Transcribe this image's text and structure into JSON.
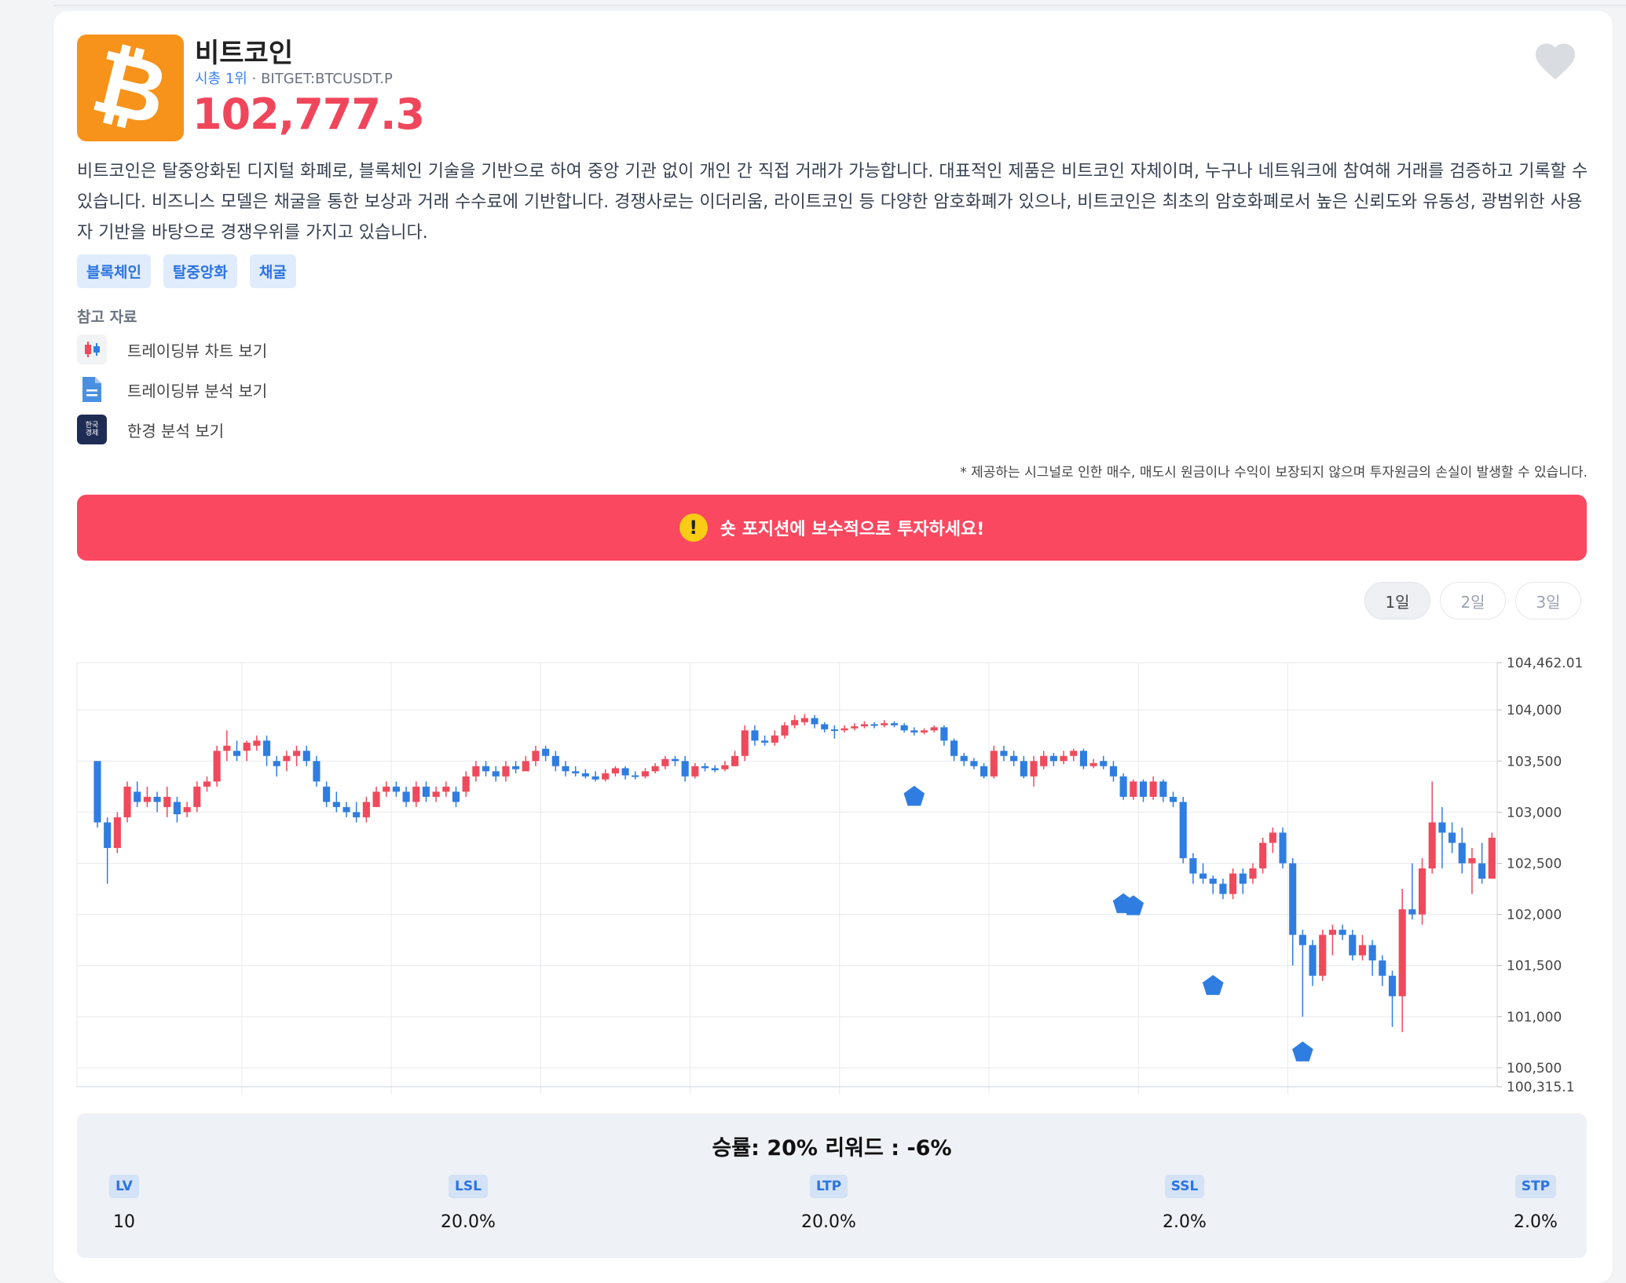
{
  "coin": {
    "name": "비트코인",
    "rank": "시총 1위",
    "sep": "·",
    "ticker": "BITGET:BTCUSDT.P",
    "price": "102,777.3",
    "logo_symbol": "₿",
    "description": "비트코인은 탈중앙화된 디지털 화폐로, 블록체인 기술을 기반으로 하여 중앙 기관 없이 개인 간 직접 거래가 가능합니다. 대표적인 제품은 비트코인 자체이며, 누구나 네트워크에 참여해 거래를 검증하고 기록할 수 있습니다. 비즈니스 모델은 채굴을 통한 보상과 거래 수수료에 기반합니다. 경쟁사로는 이더리움, 라이트코인 등 다양한 암호화폐가 있으나, 비트코인은 최초의 암호화폐로서 높은 신뢰도와 유동성, 광범위한 사용자 기반을 바탕으로 경쟁우위를 가지고 있습니다.",
    "tags": [
      "블록체인",
      "탈중앙화",
      "채굴"
    ]
  },
  "references": {
    "title": "참고 자료",
    "items": [
      {
        "label": "트레이딩뷰 차트 보기",
        "icon": "candlestick-icon"
      },
      {
        "label": "트레이딩뷰 분석 보기",
        "icon": "document-icon"
      },
      {
        "label": "한경 분석 보기",
        "icon": "hankyung-logo-icon",
        "icon_text": "한국\n경제"
      }
    ]
  },
  "disclaimer": "* 제공하는 시그널로 인한 매수, 매도시 원금이나 수익이 보장되지 않으며 투자원금의 손실이 발생할 수 있습니다.",
  "alert": {
    "icon": "!",
    "text": "숏 포지션에 보수적으로 투자하세요!"
  },
  "periods": [
    {
      "label": "1일",
      "active": true
    },
    {
      "label": "2일",
      "active": false
    },
    {
      "label": "3일",
      "active": false
    }
  ],
  "colors": {
    "up": "#ef4a5c",
    "down": "#2f7de1",
    "price": "#f0465b",
    "banner": "#fa4860",
    "logo": "#f7931a",
    "signal": "#2f7de1"
  },
  "chart_data": {
    "type": "candlestick",
    "ylim": [
      100315.1,
      104462.01
    ],
    "yticks": [
      "104,462.01",
      "104,000",
      "103,500",
      "103,000",
      "102,500",
      "102,000",
      "101,500",
      "101,000",
      "100,500",
      "100,315.1"
    ],
    "grid": true,
    "candles": [
      [
        103500,
        102900,
        103500,
        102850
      ],
      [
        102900,
        102650,
        102950,
        102300
      ],
      [
        102650,
        102950,
        103000,
        102600
      ],
      [
        102950,
        103250,
        103300,
        102900
      ],
      [
        103200,
        103100,
        103300,
        103050
      ],
      [
        103100,
        103150,
        103250,
        103050
      ],
      [
        103150,
        103100,
        103200,
        103000
      ],
      [
        103050,
        103150,
        103250,
        102950
      ],
      [
        103100,
        102980,
        103150,
        102900
      ],
      [
        103000,
        103050,
        103100,
        102950
      ],
      [
        103050,
        103250,
        103300,
        103000
      ],
      [
        103250,
        103300,
        103350,
        103200
      ],
      [
        103300,
        103600,
        103650,
        103250
      ],
      [
        103600,
        103650,
        103800,
        103500
      ],
      [
        103600,
        103550,
        103700,
        103500
      ],
      [
        103600,
        103680,
        103700,
        103500
      ],
      [
        103650,
        103700,
        103750,
        103600
      ],
      [
        103700,
        103550,
        103750,
        103450
      ],
      [
        103500,
        103450,
        103550,
        103350
      ],
      [
        103500,
        103550,
        103600,
        103400
      ],
      [
        103550,
        103600,
        103650,
        103450
      ],
      [
        103600,
        103500,
        103650,
        103450
      ],
      [
        103500,
        103300,
        103550,
        103250
      ],
      [
        103250,
        103100,
        103300,
        103050
      ],
      [
        103100,
        103050,
        103200,
        103000
      ],
      [
        103050,
        103000,
        103100,
        102950
      ],
      [
        103000,
        102950,
        103100,
        102900
      ],
      [
        102950,
        103100,
        103150,
        102900
      ],
      [
        103050,
        103200,
        103250,
        103050
      ],
      [
        103200,
        103250,
        103300,
        103150
      ],
      [
        103250,
        103200,
        103300,
        103150
      ],
      [
        103200,
        103100,
        103250,
        103050
      ],
      [
        103100,
        103250,
        103300,
        103050
      ],
      [
        103250,
        103150,
        103300,
        103100
      ],
      [
        103150,
        103200,
        103250,
        103100
      ],
      [
        103200,
        103250,
        103300,
        103150
      ],
      [
        103200,
        103100,
        103250,
        103050
      ],
      [
        103200,
        103350,
        103400,
        103150
      ],
      [
        103350,
        103450,
        103500,
        103300
      ],
      [
        103450,
        103400,
        103500,
        103350
      ],
      [
        103400,
        103350,
        103450,
        103300
      ],
      [
        103350,
        103450,
        103500,
        103300
      ],
      [
        103450,
        103420,
        103500,
        103380
      ],
      [
        103400,
        103500,
        103550,
        103400
      ],
      [
        103500,
        103600,
        103650,
        103450
      ],
      [
        103620,
        103550,
        103650,
        103500
      ],
      [
        103550,
        103450,
        103600,
        103400
      ],
      [
        103450,
        103400,
        103500,
        103350
      ],
      [
        103400,
        103380,
        103450,
        103350
      ],
      [
        103380,
        103350,
        103420,
        103330
      ],
      [
        103350,
        103320,
        103400,
        103300
      ],
      [
        103320,
        103380,
        103420,
        103300
      ],
      [
        103380,
        103430,
        103450,
        103350
      ],
      [
        103430,
        103360,
        103450,
        103320
      ],
      [
        103360,
        103350,
        103400,
        103320
      ],
      [
        103350,
        103400,
        103430,
        103330
      ],
      [
        103400,
        103450,
        103480,
        103380
      ],
      [
        103450,
        103520,
        103550,
        103420
      ],
      [
        103520,
        103500,
        103550,
        103450
      ],
      [
        103500,
        103350,
        103550,
        103300
      ],
      [
        103350,
        103450,
        103480,
        103330
      ],
      [
        103450,
        103430,
        103480,
        103400
      ],
      [
        103430,
        103410,
        103460,
        103390
      ],
      [
        103420,
        103460,
        103500,
        103400
      ],
      [
        103450,
        103550,
        103600,
        103450
      ],
      [
        103550,
        103800,
        103850,
        103500
      ],
      [
        103800,
        103700,
        103850,
        103650
      ],
      [
        103700,
        103680,
        103750,
        103650
      ],
      [
        103680,
        103750,
        103800,
        103650
      ],
      [
        103750,
        103850,
        103880,
        103720
      ],
      [
        103850,
        103900,
        103950,
        103820
      ],
      [
        103880,
        103920,
        103960,
        103850
      ],
      [
        103920,
        103860,
        103950,
        103820
      ],
      [
        103860,
        103810,
        103880,
        103780
      ],
      [
        103810,
        103800,
        103850,
        103720
      ],
      [
        103800,
        103820,
        103850,
        103780
      ],
      [
        103820,
        103840,
        103870,
        103800
      ],
      [
        103840,
        103860,
        103890,
        103820
      ],
      [
        103860,
        103850,
        103880,
        103820
      ],
      [
        103850,
        103870,
        103900,
        103830
      ],
      [
        103870,
        103850,
        103890,
        103830
      ],
      [
        103850,
        103800,
        103870,
        103780
      ],
      [
        103800,
        103780,
        103830,
        103750
      ],
      [
        103780,
        103800,
        103820,
        103760
      ],
      [
        103800,
        103830,
        103850,
        103780
      ],
      [
        103830,
        103700,
        103850,
        103650
      ],
      [
        103700,
        103550,
        103720,
        103500
      ],
      [
        103550,
        103500,
        103580,
        103450
      ],
      [
        103500,
        103450,
        103530,
        103420
      ],
      [
        103450,
        103350,
        103480,
        103330
      ],
      [
        103350,
        103600,
        103650,
        103330
      ],
      [
        103600,
        103550,
        103650,
        103500
      ],
      [
        103550,
        103500,
        103600,
        103450
      ],
      [
        103500,
        103350,
        103550,
        103330
      ],
      [
        103350,
        103500,
        103550,
        103250
      ],
      [
        103450,
        103550,
        103600,
        103420
      ],
      [
        103550,
        103500,
        103580,
        103450
      ],
      [
        103500,
        103550,
        103600,
        103470
      ],
      [
        103550,
        103600,
        103620,
        103500
      ],
      [
        103600,
        103450,
        103620,
        103420
      ],
      [
        103450,
        103480,
        103520,
        103430
      ],
      [
        103500,
        103450,
        103550,
        103420
      ],
      [
        103450,
        103350,
        103500,
        103300
      ],
      [
        103350,
        103150,
        103380,
        103120
      ],
      [
        103150,
        103300,
        103320,
        103120
      ],
      [
        103300,
        103150,
        103320,
        103100
      ],
      [
        103150,
        103300,
        103350,
        103120
      ],
      [
        103300,
        103150,
        103320,
        103100
      ],
      [
        103150,
        103100,
        103200,
        103050
      ],
      [
        103100,
        102550,
        103150,
        102500
      ],
      [
        102550,
        102400,
        102600,
        102300
      ],
      [
        102400,
        102350,
        102500,
        102300
      ],
      [
        102350,
        102300,
        102380,
        102200
      ],
      [
        102300,
        102200,
        102350,
        102150
      ],
      [
        102200,
        102400,
        102450,
        102150
      ],
      [
        102400,
        102300,
        102450,
        102200
      ],
      [
        102350,
        102450,
        102500,
        102300
      ],
      [
        102450,
        102700,
        102750,
        102400
      ],
      [
        102700,
        102800,
        102850,
        102600
      ],
      [
        102800,
        102500,
        102850,
        102450
      ],
      [
        102500,
        101800,
        102550,
        101500
      ],
      [
        101800,
        101700,
        101850,
        101000
      ],
      [
        101700,
        101400,
        101750,
        101300
      ],
      [
        101400,
        101800,
        101850,
        101350
      ],
      [
        101800,
        101850,
        101900,
        101600
      ],
      [
        101850,
        101800,
        101900,
        101750
      ],
      [
        101800,
        101600,
        101850,
        101550
      ],
      [
        101600,
        101700,
        101800,
        101550
      ],
      [
        101700,
        101550,
        101750,
        101400
      ],
      [
        101550,
        101400,
        101600,
        101300
      ],
      [
        101400,
        101200,
        101450,
        100900
      ],
      [
        101200,
        102050,
        102250,
        100850
      ],
      [
        102050,
        102000,
        102500,
        101950
      ],
      [
        102000,
        102450,
        102550,
        101900
      ],
      [
        102450,
        102900,
        103300,
        102400
      ],
      [
        102900,
        102800,
        103050,
        102450
      ],
      [
        102800,
        102700,
        102900,
        102600
      ],
      [
        102700,
        102500,
        102850,
        102400
      ],
      [
        102500,
        102550,
        102650,
        102200
      ],
      [
        102500,
        102350,
        102700,
        102300
      ],
      [
        102350,
        102750,
        102800,
        102350
      ]
    ],
    "signals": [
      {
        "candle": 82,
        "price": 103150
      },
      {
        "candle": 103,
        "price": 102100
      },
      {
        "candle": 104,
        "price": 102080
      },
      {
        "candle": 112,
        "price": 101300
      },
      {
        "candle": 121,
        "price": 100650
      }
    ]
  },
  "stats": {
    "headline": "승률: 20% 리워드 : -6%",
    "items": [
      {
        "label": "LV",
        "value": "10"
      },
      {
        "label": "LSL",
        "value": "20.0%"
      },
      {
        "label": "LTP",
        "value": "20.0%"
      },
      {
        "label": "SSL",
        "value": "2.0%"
      },
      {
        "label": "STP",
        "value": "2.0%"
      }
    ]
  }
}
